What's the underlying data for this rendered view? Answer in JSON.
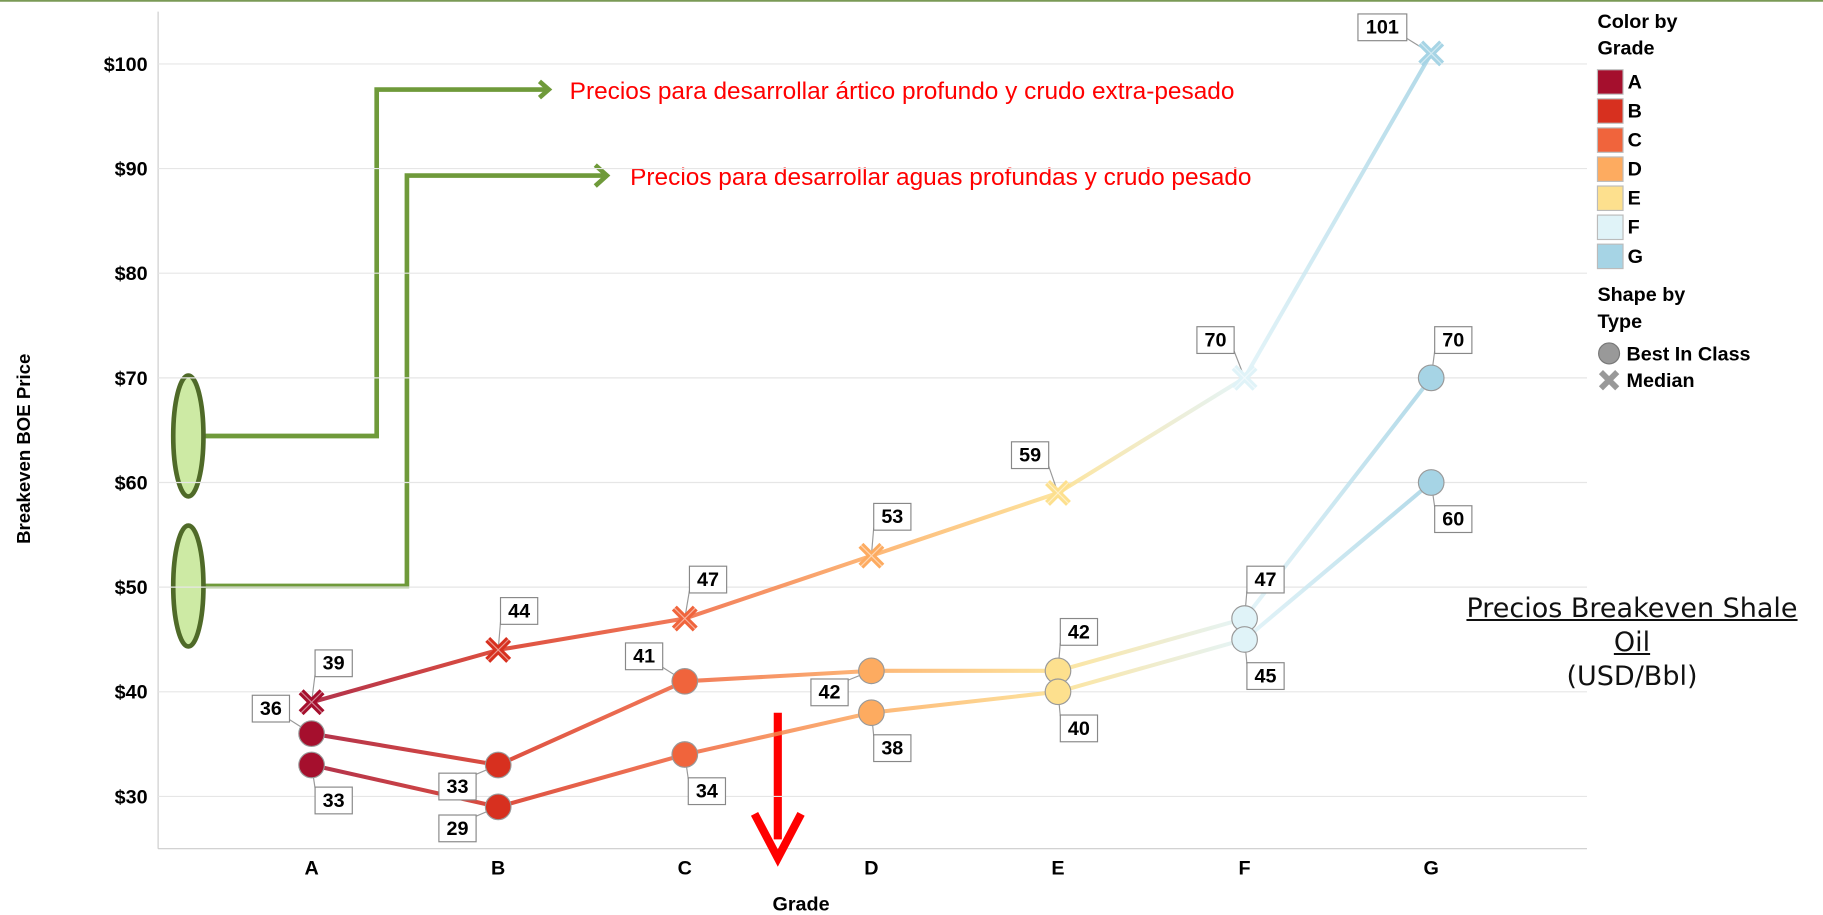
{
  "chart_data": {
    "type": "line",
    "x_label": "Grade",
    "y_label": "Breakeven BOE Price",
    "categories": [
      "A",
      "B",
      "C",
      "D",
      "E",
      "F",
      "G"
    ],
    "grade_colors": [
      "#a50f2d",
      "#d7301f",
      "#f0643c",
      "#fdab60",
      "#fde08e",
      "#e0f3f8",
      "#a6d4e5"
    ],
    "ylim": [
      25,
      105
    ],
    "yticks": [
      {
        "value": 30,
        "label": "$30"
      },
      {
        "value": 40,
        "label": "$40"
      },
      {
        "value": 50,
        "label": "$50"
      },
      {
        "value": 60,
        "label": "$60"
      },
      {
        "value": 70,
        "label": "$70"
      },
      {
        "value": 80,
        "label": "$80"
      },
      {
        "value": 90,
        "label": "$90"
      },
      {
        "value": 100,
        "label": "$100"
      }
    ],
    "grid": true,
    "series": [
      {
        "shape": "x",
        "values": [
          39,
          44,
          47,
          53,
          59,
          70,
          101
        ]
      },
      {
        "shape": "circle",
        "values": [
          36,
          33,
          41,
          42,
          42,
          47,
          70
        ]
      },
      {
        "shape": "circle",
        "values": [
          33,
          29,
          34,
          38,
          40,
          45,
          60
        ]
      }
    ],
    "legend": {
      "color_title": "Color by Grade",
      "shape_title": "Shape by Type",
      "shapes": [
        {
          "label": "Best In Class",
          "shape": "circle"
        },
        {
          "label": "Median",
          "shape": "x"
        }
      ]
    },
    "annotations": [
      "Precios para desarrollar ártico profundo y crudo extra-pesado",
      "Precios para desarrollar aguas profundas y crudo pesado"
    ],
    "title": "Precios Breakeven Shale Oil",
    "subtitle": "(USD/Bbl)"
  }
}
